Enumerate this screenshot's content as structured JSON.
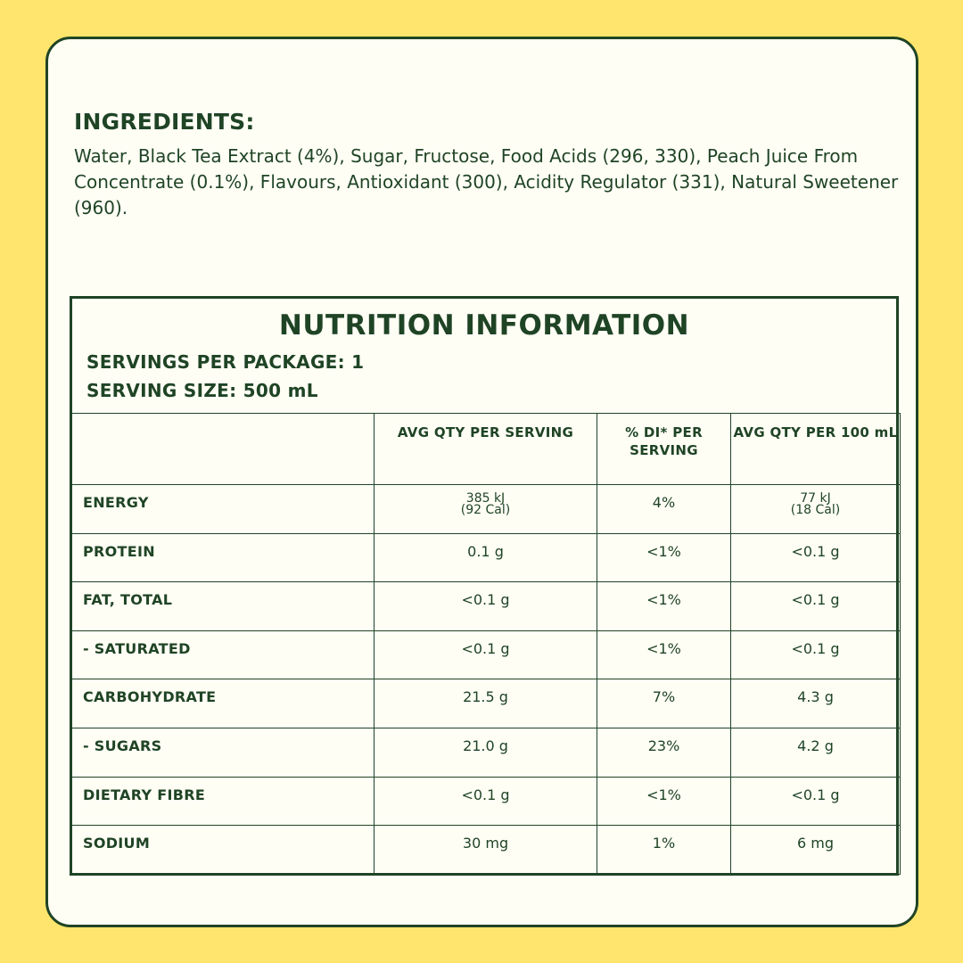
{
  "ingredients": {
    "heading": "INGREDIENTS:",
    "text": "Water, Black Tea Extract (4%), Sugar, Fructose, Food Acids (296, 330), Peach Juice From Concentrate (0.1%), Flavours, Antioxidant (300), Acidity Regulator (331), Natural Sweetener (960)."
  },
  "nutrition": {
    "title": "NUTRITION INFORMATION",
    "servings_per_package": "SERVINGS PER PACKAGE: 1",
    "serving_size": "SERVING SIZE: 500 mL",
    "columns": {
      "nutrient": "",
      "avg_qty_serving": "AVG QTY PER SERVING",
      "di_per_serving": "% DI* PER SERVING",
      "avg_qty_100ml": "AVG QTY PER 100 mL"
    },
    "rows": [
      {
        "name": "ENERGY",
        "serving_line1": "385 kJ",
        "serving_line2": "(92 Cal)",
        "di": "4%",
        "per100_line1": "77 kJ",
        "per100_line2": "(18 Cal)"
      },
      {
        "name": "PROTEIN",
        "serving": "0.1 g",
        "di": "<1%",
        "per100": "<0.1 g"
      },
      {
        "name": "FAT, TOTAL",
        "serving": "<0.1 g",
        "di": "<1%",
        "per100": "<0.1 g"
      },
      {
        "name": "- SATURATED",
        "serving": "<0.1 g",
        "di": "<1%",
        "per100": "<0.1 g"
      },
      {
        "name": "CARBOHYDRATE",
        "serving": "21.5 g",
        "di": "7%",
        "per100": "4.3 g"
      },
      {
        "name": "- SUGARS",
        "serving": "21.0 g",
        "di": "23%",
        "per100": "4.2 g"
      },
      {
        "name": "DIETARY FIBRE",
        "serving": "<0.1 g",
        "di": "<1%",
        "per100": "<0.1 g"
      },
      {
        "name": "SODIUM",
        "serving": "30 mg",
        "di": "1%",
        "per100": "6 mg"
      }
    ]
  },
  "colors": {
    "background": "#FFE56D",
    "card": "#FFFEF5",
    "ink": "#1F4425"
  }
}
